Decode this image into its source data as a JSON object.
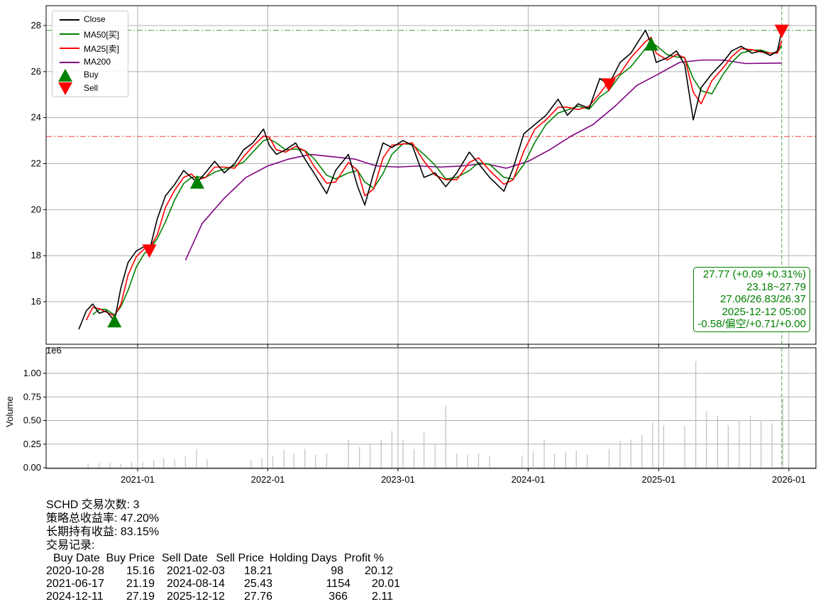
{
  "chart_data": [
    {
      "type": "line",
      "xlim": [
        "2020-05-15",
        "2026-02-20"
      ],
      "ylim": [
        14.14,
        28.86
      ],
      "grid": true,
      "legend_placement": "top-left",
      "yticks": [
        "16",
        "18",
        "20",
        "22",
        "24",
        "26",
        "28"
      ],
      "legend": [
        "Close",
        "MA50[买]",
        "MA25[卖]",
        "MA200",
        "Buy",
        "Sell"
      ],
      "colors": {
        "close": "#000000",
        "ma50": "#008000",
        "ma25": "#ff0000",
        "ma200": "#800080",
        "buy": "#008000",
        "sell": "#ff0000"
      },
      "ma_windows_trading_days": {
        "ma50": 50,
        "ma25": 25
      },
      "close": {
        "dates": [
          "2020-07-20",
          "2020-08-10",
          "2020-08-28",
          "2020-09-15",
          "2020-10-05",
          "2020-10-28",
          "2020-11-15",
          "2020-12-05",
          "2020-12-28",
          "2021-01-20",
          "2021-02-03",
          "2021-02-25",
          "2021-03-20",
          "2021-04-15",
          "2021-05-10",
          "2021-06-01",
          "2021-06-17",
          "2021-07-10",
          "2021-08-05",
          "2021-09-01",
          "2021-09-30",
          "2021-10-25",
          "2021-11-20",
          "2021-12-20",
          "2022-01-05",
          "2022-01-25",
          "2022-02-20",
          "2022-03-20",
          "2022-04-15",
          "2022-05-10",
          "2022-06-15",
          "2022-07-10",
          "2022-08-15",
          "2022-09-10",
          "2022-09-30",
          "2022-10-25",
          "2022-11-20",
          "2022-12-15",
          "2023-01-15",
          "2023-02-10",
          "2023-03-15",
          "2023-04-15",
          "2023-05-15",
          "2023-06-15",
          "2023-07-20",
          "2023-08-15",
          "2023-09-15",
          "2023-10-25",
          "2023-11-20",
          "2023-12-20",
          "2024-01-20",
          "2024-02-20",
          "2024-03-25",
          "2024-04-20",
          "2024-05-20",
          "2024-06-20",
          "2024-07-20",
          "2024-08-14",
          "2024-09-15",
          "2024-10-15",
          "2024-11-25",
          "2024-12-11",
          "2024-12-25",
          "2025-01-25",
          "2025-02-20",
          "2025-03-15",
          "2025-04-08",
          "2025-04-30",
          "2025-05-30",
          "2025-06-30",
          "2025-07-25",
          "2025-08-20",
          "2025-09-20",
          "2025-10-15",
          "2025-11-10",
          "2025-11-30",
          "2025-12-12"
        ],
        "values": [
          14.8,
          15.6,
          15.9,
          15.5,
          15.6,
          15.16,
          16.6,
          17.7,
          18.2,
          18.4,
          18.21,
          19.6,
          20.6,
          21.1,
          21.7,
          21.4,
          21.19,
          21.6,
          22.1,
          21.6,
          22.0,
          22.6,
          22.9,
          23.5,
          22.8,
          22.4,
          22.6,
          22.9,
          22.2,
          21.6,
          20.7,
          21.7,
          22.4,
          21.0,
          20.2,
          21.6,
          22.9,
          22.7,
          23.0,
          22.8,
          21.4,
          21.6,
          21.0,
          21.6,
          22.5,
          22.0,
          21.4,
          20.8,
          21.8,
          23.3,
          23.7,
          24.1,
          24.8,
          24.1,
          24.6,
          24.4,
          25.7,
          25.43,
          26.4,
          26.8,
          27.8,
          27.19,
          26.4,
          26.6,
          26.9,
          26.3,
          23.9,
          25.3,
          25.9,
          26.4,
          26.9,
          27.1,
          26.8,
          26.9,
          26.7,
          26.9,
          27.77
        ]
      },
      "ma200": {
        "dates": [
          "2021-05-15",
          "2021-07-01",
          "2021-09-01",
          "2021-11-01",
          "2022-01-01",
          "2022-03-01",
          "2022-05-01",
          "2022-07-01",
          "2022-09-01",
          "2022-11-01",
          "2023-01-01",
          "2023-03-01",
          "2023-05-01",
          "2023-07-01",
          "2023-09-01",
          "2023-11-01",
          "2024-01-01",
          "2024-03-01",
          "2024-05-01",
          "2024-07-01",
          "2024-09-01",
          "2024-11-01",
          "2025-01-01",
          "2025-03-01",
          "2025-05-01",
          "2025-07-01",
          "2025-09-01",
          "2025-12-12"
        ],
        "values": [
          17.8,
          19.4,
          20.5,
          21.4,
          21.9,
          22.2,
          22.4,
          22.3,
          22.2,
          21.9,
          21.85,
          21.9,
          21.85,
          21.9,
          22.0,
          21.8,
          22.1,
          22.6,
          23.2,
          23.7,
          24.5,
          25.4,
          25.9,
          26.4,
          26.5,
          26.5,
          26.35,
          26.37
        ]
      },
      "hlines": [
        {
          "value": 27.79,
          "color": "#008000"
        },
        {
          "value": 23.18,
          "color": "#ff0000"
        }
      ],
      "vline": {
        "date": "2025-12-12",
        "color": "#008000"
      },
      "buys": [
        {
          "date": "2020-10-28",
          "price": 15.16
        },
        {
          "date": "2021-06-17",
          "price": 21.19
        },
        {
          "date": "2024-12-11",
          "price": 27.19
        }
      ],
      "sells": [
        {
          "date": "2021-02-03",
          "price": 18.21
        },
        {
          "date": "2024-08-14",
          "price": 25.43
        },
        {
          "date": "2025-12-12",
          "price": 27.76
        }
      ]
    },
    {
      "type": "bar",
      "ylabel": "Volume",
      "offset_text": "1e6",
      "ylim": [
        0,
        1.2
      ],
      "yticks": [
        "0.00",
        "0.25",
        "0.50",
        "0.75",
        "1.00"
      ],
      "xticks": [
        "2021-01",
        "2022-01",
        "2023-01",
        "2024-01",
        "2025-01",
        "2026-01"
      ],
      "bar_color": "#c0c0c0",
      "dates": [
        "2020-08",
        "2020-09",
        "2020-10",
        "2020-11",
        "2020-12",
        "2021-01",
        "2021-02",
        "2021-03",
        "2021-04",
        "2021-05",
        "2021-06",
        "2021-07",
        "2021-11",
        "2021-12",
        "2022-01",
        "2022-02",
        "2022-03",
        "2022-04",
        "2022-05",
        "2022-06",
        "2022-08",
        "2022-09",
        "2022-10",
        "2022-11",
        "2022-12",
        "2023-01",
        "2023-02",
        "2023-03",
        "2023-04",
        "2023-05",
        "2023-06",
        "2023-07",
        "2023-08",
        "2023-09",
        "2023-12",
        "2024-01",
        "2024-02",
        "2024-03",
        "2024-04",
        "2024-05",
        "2024-06",
        "2024-08",
        "2024-09",
        "2024-10",
        "2024-11",
        "2024-12",
        "2025-01",
        "2025-03",
        "2025-04",
        "2025-05",
        "2025-06",
        "2025-07",
        "2025-08",
        "2025-09",
        "2025-10",
        "2025-11",
        "2025-12"
      ],
      "values": [
        0.05,
        0.05,
        0.05,
        0.04,
        0.06,
        0.06,
        0.08,
        0.1,
        0.09,
        0.12,
        0.2,
        0.09,
        0.08,
        0.1,
        0.12,
        0.19,
        0.15,
        0.2,
        0.14,
        0.15,
        0.3,
        0.22,
        0.25,
        0.3,
        0.39,
        0.3,
        0.2,
        0.37,
        0.25,
        0.66,
        0.15,
        0.14,
        0.15,
        0.12,
        0.13,
        0.17,
        0.3,
        0.15,
        0.17,
        0.18,
        0.14,
        0.2,
        0.28,
        0.3,
        0.35,
        0.48,
        0.45,
        0.44,
        1.13,
        0.6,
        0.55,
        0.45,
        0.5,
        0.55,
        0.5,
        0.47,
        0.73
      ]
    }
  ],
  "info_box": [
    "27.77 (+0.09 +0.31%)",
    "23.18~27.79",
    "27.06/26.83/26.37",
    "2025-12-12 05:00",
    "-0.58/偏空/+0.71/+0.00"
  ],
  "summary": {
    "line1": "SCHD 交易次数: 3",
    "line2": "策略总收益率: 47.20%",
    "line3": "长期持有收益: 83.15%",
    "line4": "交易记录:"
  },
  "trades": {
    "headers": [
      "Buy Date",
      "Buy Price",
      "Sell Date",
      "Sell Price",
      "Holding Days",
      "Profit %"
    ],
    "rows": [
      [
        "2020-10-28",
        "15.16",
        "2021-02-03",
        "18.21",
        "98",
        "20.12"
      ],
      [
        "2021-06-17",
        "21.19",
        "2024-08-14",
        "25.43",
        "1154",
        "20.01"
      ],
      [
        "2024-12-11",
        "27.19",
        "2025-12-12",
        "27.76",
        "366",
        "2.11"
      ]
    ]
  }
}
